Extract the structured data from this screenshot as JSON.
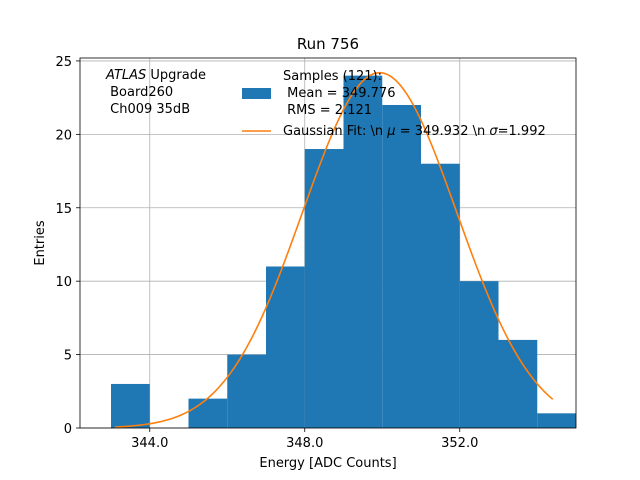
{
  "chart_data": {
    "type": "bar",
    "title": "Run 756",
    "xlabel": "Energy [ADC Counts]",
    "ylabel": "Entries",
    "xlim": [
      342.2,
      355.0
    ],
    "ylim": [
      0,
      25.2
    ],
    "xticks": [
      344.0,
      348.0,
      352.0
    ],
    "xtick_labels": [
      "344.0",
      "348.0",
      "352.0"
    ],
    "yticks": [
      0,
      5,
      10,
      15,
      20,
      25
    ],
    "ytick_labels": [
      "0",
      "5",
      "10",
      "15",
      "20",
      "25"
    ],
    "grid": true,
    "bin_width": 1.0,
    "histogram": {
      "name": "Samples (121):\n Mean = 349.776\n RMS = 2.121",
      "color": "#1f77b4",
      "bin_edges": [
        343,
        344,
        345,
        346,
        347,
        348,
        349,
        350,
        351,
        352,
        353,
        354,
        355
      ],
      "counts": [
        3,
        0,
        2,
        5,
        11,
        19,
        24,
        22,
        18,
        10,
        6,
        1
      ]
    },
    "fit": {
      "name": "Gaussian Fit: \\n $\\mu$ = 349.932 \\n $\\sigma$=1.992",
      "color": "#ff7f0e",
      "type": "gaussian",
      "amplitude": 24.2,
      "mu": 349.932,
      "sigma": 1.992,
      "x_range": [
        343.1,
        354.4
      ]
    },
    "annotation": {
      "italic": "ATLAS",
      "rest": " Upgrade",
      "line2": " Board260",
      "line3": " Ch009 35dB"
    },
    "legend": {
      "position": "top-right",
      "hist_lines": [
        "Samples (121):",
        " Mean = 349.776",
        " RMS = 2.121"
      ],
      "fit_label_before_mu": "Gaussian Fit: \\n ",
      "mu_symbol": "μ",
      "fit_label_mid": " = 349.932 \\n ",
      "sigma_symbol": "σ",
      "fit_label_end": "=1.992"
    }
  }
}
